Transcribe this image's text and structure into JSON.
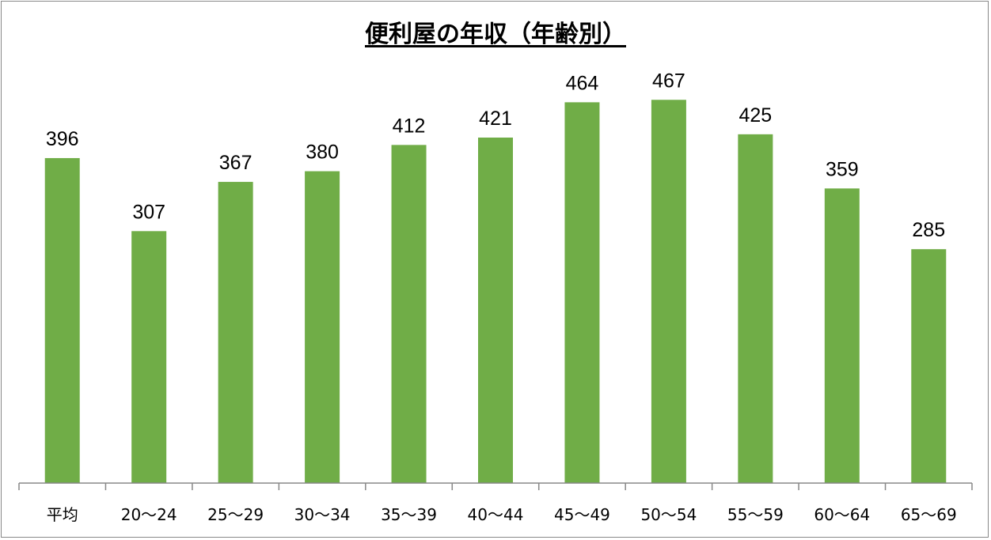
{
  "chart_data": {
    "type": "bar",
    "title": "便利屋の年収（年齢別）",
    "categories": [
      "平均",
      "20〜24",
      "25〜29",
      "30〜34",
      "35〜39",
      "40〜44",
      "45〜49",
      "50〜54",
      "55〜59",
      "60〜64",
      "65〜69"
    ],
    "values": [
      396,
      307,
      367,
      380,
      412,
      421,
      464,
      467,
      425,
      359,
      285
    ],
    "xlabel": "",
    "ylabel": "",
    "ylim": [
      0,
      500
    ],
    "grid": false,
    "legend": "none",
    "bar_color": "#70AD47",
    "data_labels": true
  }
}
